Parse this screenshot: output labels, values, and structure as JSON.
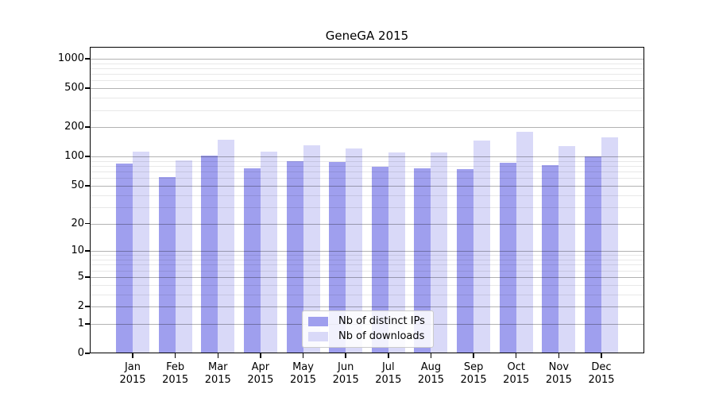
{
  "chart_data": {
    "type": "bar",
    "title": "GeneGA 2015",
    "xlabel": "",
    "ylabel": "",
    "yscale": "log1p",
    "ylim": [
      0,
      1300
    ],
    "yticks": [
      0,
      1,
      2,
      5,
      10,
      20,
      50,
      100,
      200,
      500,
      1000
    ],
    "yticks_minor": [
      3,
      4,
      6,
      7,
      8,
      9,
      30,
      40,
      60,
      70,
      80,
      90,
      300,
      400,
      600,
      700,
      800,
      900
    ],
    "grid": true,
    "legend_position": "lower center",
    "categories": [
      "Jan 2015",
      "Feb 2015",
      "Mar 2015",
      "Apr 2015",
      "May 2015",
      "Jun 2015",
      "Jul 2015",
      "Aug 2015",
      "Sep 2015",
      "Oct 2015",
      "Nov 2015",
      "Dec 2015"
    ],
    "series": [
      {
        "name": "Nb of distinct IPs",
        "color": "#9f9fee",
        "values": [
          84,
          61,
          103,
          76,
          89,
          88,
          79,
          76,
          74,
          86,
          81,
          100
        ]
      },
      {
        "name": "Nb of downloads",
        "color": "#d9d9f8",
        "values": [
          113,
          92,
          150,
          112,
          130,
          122,
          110,
          110,
          145,
          178,
          128,
          158
        ]
      }
    ]
  },
  "colors": {
    "grid_major": "rgba(0,0,0,0.30)",
    "grid_minor": "rgba(0,0,0,0.09)",
    "spine": "#000000",
    "background": "#ffffff"
  }
}
